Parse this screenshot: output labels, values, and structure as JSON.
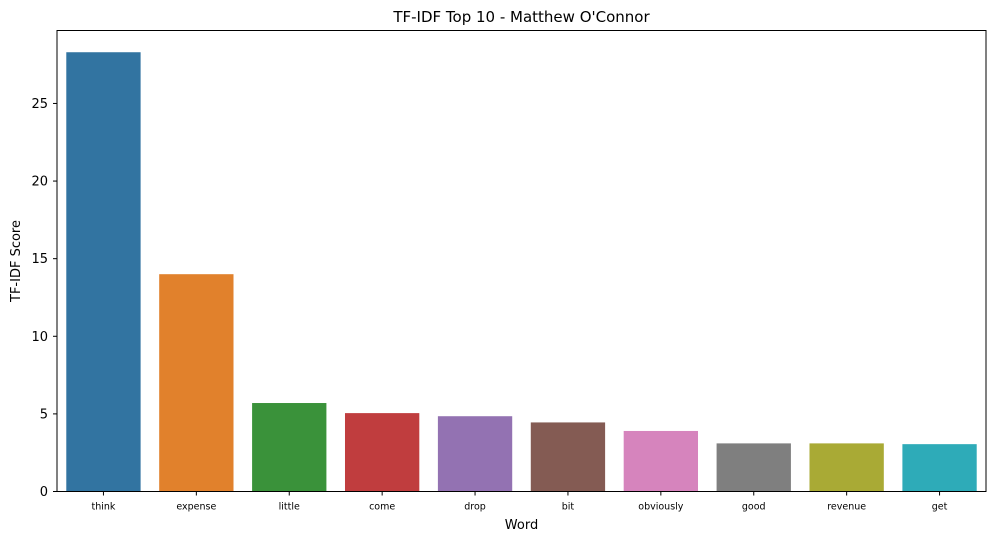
{
  "chart_data": {
    "type": "bar",
    "title": "TF-IDF Top 10 - Matthew O'Connor",
    "xlabel": "Word",
    "ylabel": "TF-IDF Score",
    "categories": [
      "think",
      "expense",
      "little",
      "come",
      "drop",
      "bit",
      "obviously",
      "good",
      "revenue",
      "get"
    ],
    "values": [
      28.3,
      14.0,
      5.7,
      5.05,
      4.85,
      4.45,
      3.9,
      3.1,
      3.1,
      3.05
    ],
    "colors": [
      "#3274a1",
      "#e1812c",
      "#3a923a",
      "#c03d3e",
      "#9372b2",
      "#845b53",
      "#d684bd",
      "#7f7f7f",
      "#a9aa35",
      "#2eabb8"
    ],
    "yticks": [
      0,
      5,
      10,
      15,
      20,
      25
    ],
    "ylim": [
      0,
      29.7
    ],
    "grid": false,
    "legend": "none"
  }
}
